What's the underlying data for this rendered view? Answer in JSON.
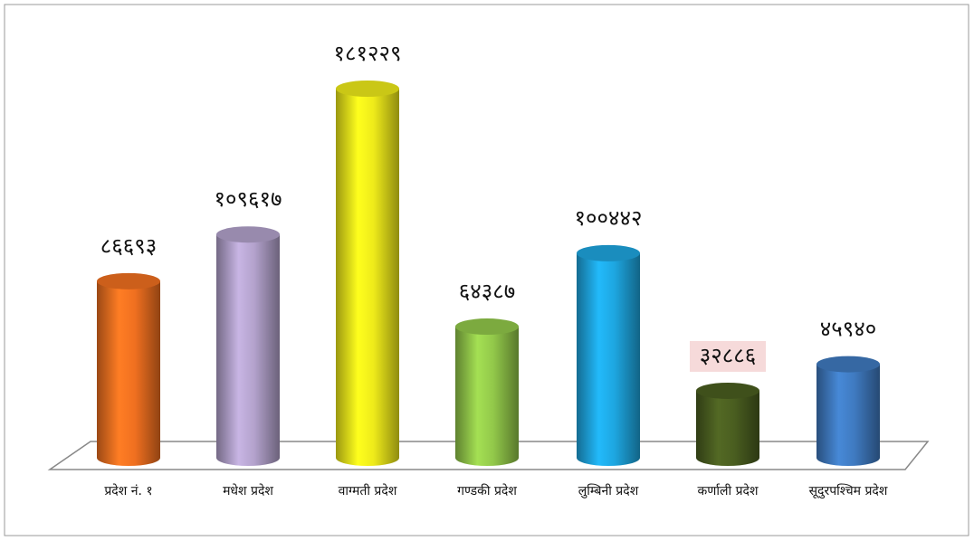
{
  "chart_data": {
    "type": "bar3d",
    "categories": [
      "प्रदेश नं. १",
      "मधेश प्रदेश",
      "वाग्मती प्रदेश",
      "गण्डकी प्रदेश",
      "लुम्बिनी प्रदेश",
      "कर्णाली प्रदेश",
      "सूदुरपश्चिम प्रदेश"
    ],
    "values": [
      86693,
      109617,
      181229,
      64387,
      100442,
      32886,
      45940
    ],
    "value_labels": [
      "८६६९३",
      "१०९६१७",
      "१८१२२९",
      "६४३८७",
      "१००४४२",
      "३२८८६",
      "४५९४०"
    ],
    "colors": [
      "#f07020",
      "#b3a2cc",
      "#eeea1a",
      "#92c84a",
      "#1ea6e0",
      "#4a5e20",
      "#3f7ac0"
    ],
    "highlight": 5
  }
}
